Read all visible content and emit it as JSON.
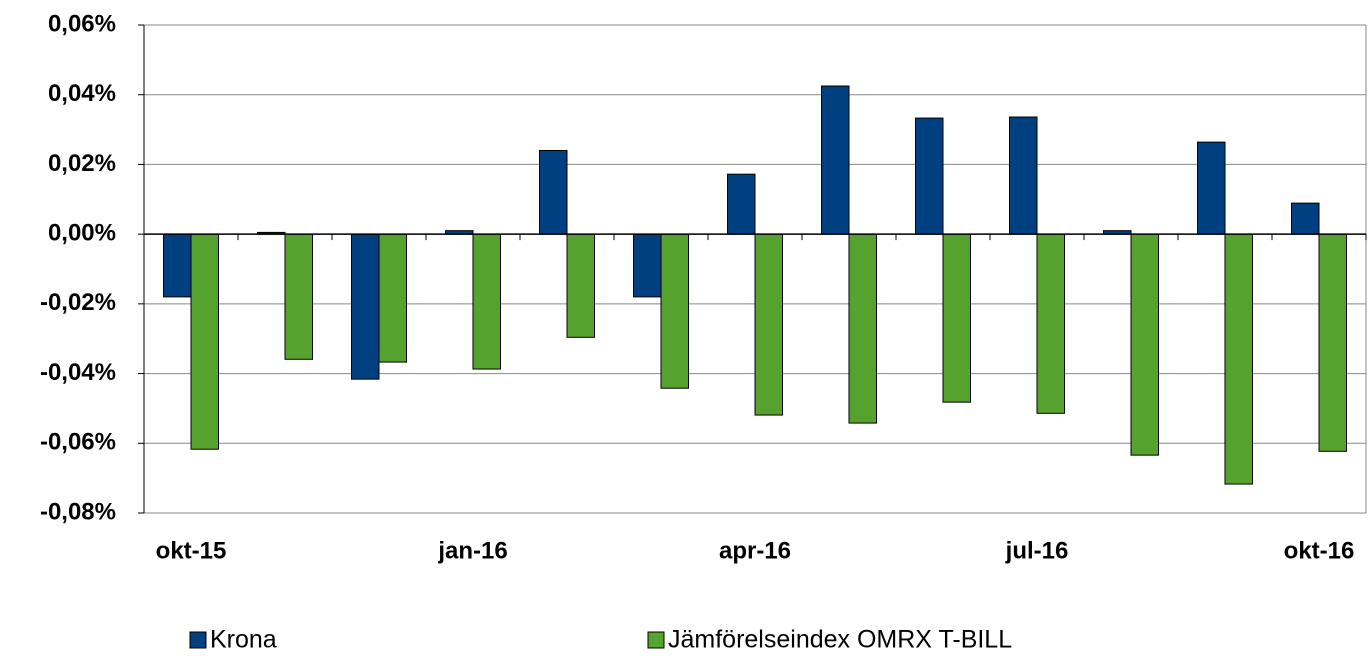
{
  "chart_data": {
    "type": "bar",
    "categories": [
      "okt-15",
      null,
      null,
      "jan-16",
      null,
      null,
      "apr-16",
      null,
      null,
      "jul-16",
      null,
      null,
      "okt-16"
    ],
    "series": [
      {
        "name": "Krona",
        "color": "#004080",
        "values": [
          -0.018,
          0.0005,
          -0.0416,
          0.001,
          0.024,
          -0.018,
          0.0172,
          0.0425,
          0.0333,
          0.0336,
          0.001,
          0.0264,
          0.0089
        ]
      },
      {
        "name": "Jämförelseindex OMRX T-BILL",
        "color": "#56a22e",
        "values": [
          -0.0617,
          -0.0359,
          -0.0367,
          -0.0387,
          -0.0296,
          -0.0442,
          -0.0519,
          -0.0542,
          -0.0482,
          -0.0514,
          -0.0634,
          -0.0717,
          -0.0623
        ]
      }
    ],
    "ylim": [
      -0.08,
      0.06
    ],
    "yticks": [
      {
        "value": -0.08,
        "label": "-0,08%"
      },
      {
        "value": -0.06,
        "label": "-0,06%"
      },
      {
        "value": -0.04,
        "label": "-0,04%"
      },
      {
        "value": -0.02,
        "label": "-0,02%"
      },
      {
        "value": 0,
        "label": "0,00%"
      },
      {
        "value": 0.02,
        "label": "0,02%"
      },
      {
        "value": 0.04,
        "label": "0,04%"
      },
      {
        "value": 0.06,
        "label": "0,06%"
      }
    ],
    "grid": true
  }
}
